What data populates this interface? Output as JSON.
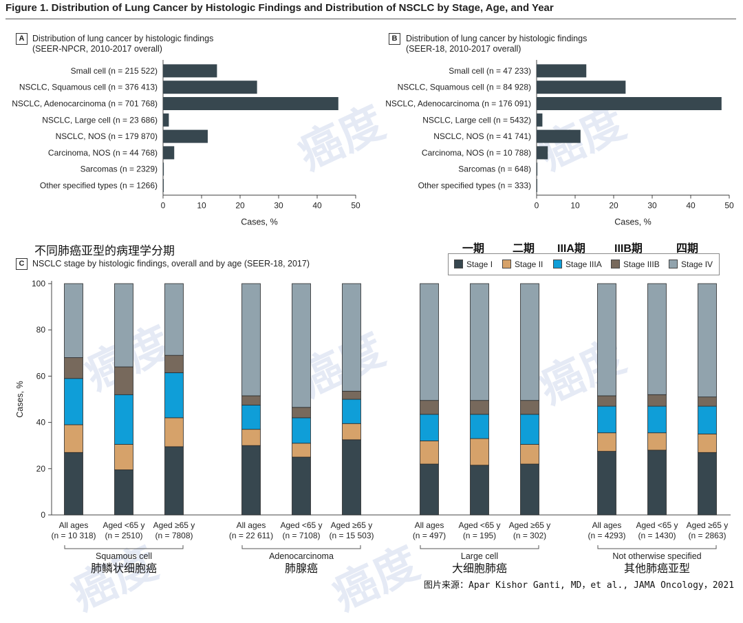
{
  "figure_title": "Figure 1. Distribution of Lung Cancer by Histologic Findings and Distribution of NSCLC by Stage, Age, and Year",
  "colors": {
    "bar_dark": "#37474f",
    "stage_i": "#37474f",
    "stage_ii": "#d6a26a",
    "stage_iiia": "#0f9ed8",
    "stage_iiib": "#77695c",
    "stage_iv": "#91a3ad",
    "watermark": "#96aad7"
  },
  "panel_a": {
    "label": "A",
    "title_line1": "Distribution of lung cancer by histologic findings",
    "title_line2": "(SEER-NPCR, 2010-2017 overall)"
  },
  "panel_b": {
    "label": "B",
    "title_line1": "Distribution of lung cancer by histologic findings",
    "title_line2": "(SEER-18, 2010-2017 overall)"
  },
  "panel_c": {
    "label": "C",
    "title": "NSCLC stage by histologic findings, overall and by age (SEER-18, 2017)",
    "cn_title": "不同肺癌亚型的病理学分期"
  },
  "cn_stage_labels": [
    "一期",
    "二期",
    "IIIA期",
    "IIIB期",
    "四期"
  ],
  "cn_group_labels": [
    "肺鳞状细胞癌",
    "肺腺癌",
    "大细胞肺癌",
    "其他肺癌亚型"
  ],
  "watermark_text": "癌度",
  "source": "图片来源：Apar Kishor Ganti, MD，et al., JAMA Oncology，2021",
  "chart_data": [
    {
      "id": "A",
      "type": "bar",
      "orientation": "horizontal",
      "title": "Distribution of lung cancer by histologic findings (SEER-NPCR, 2010-2017 overall)",
      "categories": [
        "Small cell (n = 215 522)",
        "NSCLC, Squamous cell (n = 376 413)",
        "NSCLC, Adenocarcinoma (n = 701 768)",
        "NSCLC, Large cell (n = 23 686)",
        "NSCLC, NOS (n = 179 870)",
        "Carcinoma, NOS (n = 44 768)",
        "Sarcomas  (n = 2329)",
        "Other specified types (n = 1266)"
      ],
      "values": [
        14.0,
        24.4,
        45.5,
        1.5,
        11.6,
        2.9,
        0.2,
        0.1
      ],
      "xlabel": "Cases, %",
      "xlim": [
        0,
        50
      ],
      "xticks": [
        "0",
        "10",
        "20",
        "30",
        "40",
        "50"
      ]
    },
    {
      "id": "B",
      "type": "bar",
      "orientation": "horizontal",
      "title": "Distribution of lung cancer by histologic findings (SEER-18, 2010-2017 overall)",
      "categories": [
        "Small cell (n = 47 233)",
        "NSCLC, Squamous cell (n = 84 928)",
        "NSCLC, Adenocarcinoma (n = 176 091)",
        "NSCLC, Large cell (n = 5432)",
        "NSCLC, NOS (n = 41 741)",
        "Carcinoma, NOS (n = 10 788)",
        "Sarcomas (n = 648)",
        "Other specified types (n = 333)"
      ],
      "values": [
        12.9,
        23.1,
        48.0,
        1.5,
        11.4,
        2.9,
        0.2,
        0.1
      ],
      "xlabel": "Cases, %",
      "xlim": [
        0,
        50
      ],
      "xticks": [
        "0",
        "10",
        "20",
        "30",
        "40",
        "50"
      ]
    },
    {
      "id": "C",
      "type": "bar",
      "stacked": true,
      "title": "NSCLC stage by histologic findings, overall and by age (SEER-18, 2017)",
      "ylabel": "Cases, %",
      "ylim": [
        0,
        100
      ],
      "yticks": [
        "0",
        "20",
        "40",
        "60",
        "80",
        "100"
      ],
      "legend": [
        "Stage I",
        "Stage II",
        "Stage IIIA",
        "Stage IIIB",
        "Stage IV"
      ],
      "legend_position": "top-right",
      "groups": [
        {
          "name": "Squamous cell",
          "bars": [
            {
              "label": "All ages",
              "n": "(n = 10 318)",
              "values": [
                27,
                12,
                20,
                9,
                32
              ]
            },
            {
              "label": "Aged <65 y",
              "n": "(n = 2510)",
              "values": [
                19.5,
                11,
                21.5,
                12,
                36
              ]
            },
            {
              "label": "Aged ≥65 y",
              "n": "(n = 7808)",
              "values": [
                29.5,
                12.5,
                19.5,
                7.5,
                31
              ]
            }
          ]
        },
        {
          "name": "Adenocarcinoma",
          "bars": [
            {
              "label": "All ages",
              "n": "(n = 22 611)",
              "values": [
                30,
                7,
                10.5,
                4,
                48.5
              ]
            },
            {
              "label": "Aged <65 y",
              "n": "(n = 7108)",
              "values": [
                25,
                6,
                11,
                4.5,
                53.5
              ]
            },
            {
              "label": "Aged ≥65 y",
              "n": "(n = 15 503)",
              "values": [
                32.5,
                7,
                10.5,
                3.5,
                46.5
              ]
            }
          ]
        },
        {
          "name": "Large cell",
          "bars": [
            {
              "label": "All ages",
              "n": "(n = 497)",
              "values": [
                22,
                10,
                11.5,
                6,
                50.5
              ]
            },
            {
              "label": "Aged <65 y",
              "n": "(n = 195)",
              "values": [
                21.5,
                11.5,
                10.5,
                6,
                50.5
              ]
            },
            {
              "label": "Aged ≥65 y",
              "n": "(n = 302)",
              "values": [
                22,
                8.5,
                13,
                6,
                50.5
              ]
            }
          ]
        },
        {
          "name": "Not otherwise specified",
          "bars": [
            {
              "label": "All ages",
              "n": "(n = 4293)",
              "values": [
                27.5,
                8,
                11.5,
                4.5,
                48.5
              ]
            },
            {
              "label": "Aged <65 y",
              "n": "(n = 1430)",
              "values": [
                28,
                7.5,
                11.5,
                5,
                48
              ]
            },
            {
              "label": "Aged ≥65 y",
              "n": "(n = 2863)",
              "values": [
                27,
                8,
                12,
                4,
                49
              ]
            }
          ]
        }
      ]
    }
  ]
}
